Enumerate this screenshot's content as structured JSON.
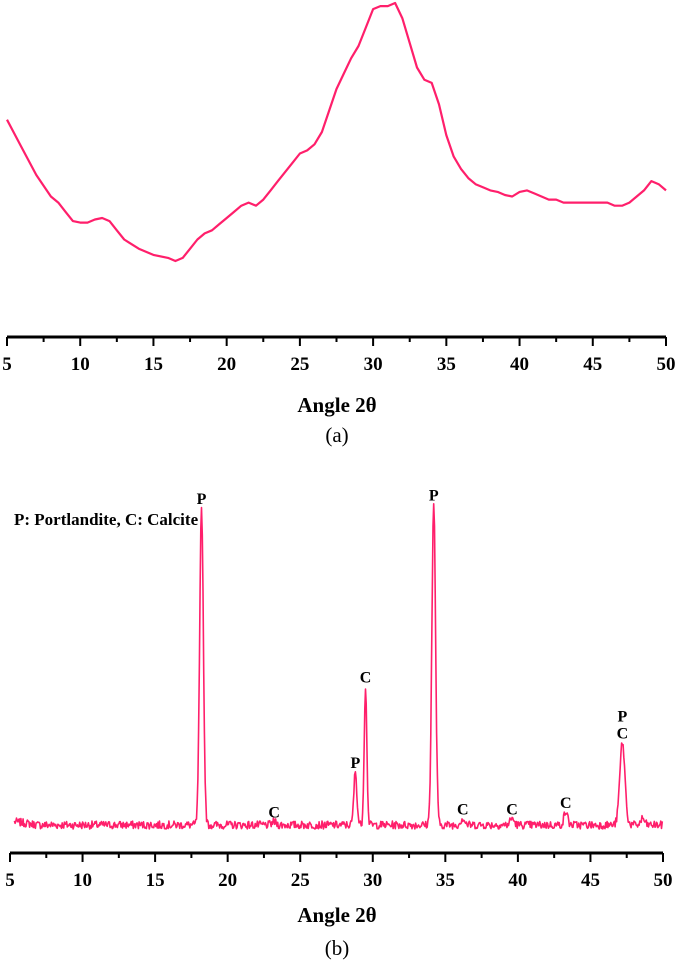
{
  "chart_data": [
    {
      "type": "line",
      "panel": "(a)",
      "caption": "(a)",
      "xlabel": "Angle 2θ",
      "ylabel": "",
      "xlim": [
        5,
        50
      ],
      "xticks": [
        5,
        10,
        15,
        20,
        25,
        30,
        35,
        40,
        45,
        50
      ],
      "ylim": [
        0,
        100
      ],
      "y_axis_shown": false,
      "grid": false,
      "color": "#ff1f6b",
      "series": [
        {
          "x": [
            5,
            6,
            7,
            8,
            8.5,
            9,
            9.5,
            10,
            10.5,
            11,
            11.5,
            12,
            12.5,
            13,
            14,
            15,
            16,
            16.5,
            17,
            17.5,
            18,
            18.5,
            19,
            19.5,
            20,
            20.5,
            21,
            21.5,
            22,
            22.5,
            23,
            23.5,
            24,
            24.5,
            25,
            25.5,
            26,
            26.5,
            27,
            27.5,
            28,
            28.5,
            29,
            29.5,
            30,
            30.5,
            31,
            31.5,
            32,
            32.5,
            33,
            33.5,
            34,
            34.5,
            35,
            35.5,
            36,
            36.5,
            37,
            37.5,
            38,
            38.5,
            39,
            39.5,
            40,
            40.5,
            41,
            41.5,
            42,
            42.5,
            43,
            44,
            45,
            46,
            46.5,
            47,
            47.5,
            48,
            48.5,
            49,
            49.5,
            50
          ],
          "y": [
            62,
            53,
            44,
            37,
            35,
            32,
            29,
            28.5,
            28.5,
            29.5,
            30,
            29,
            26,
            23,
            20,
            18,
            17,
            16,
            17,
            20,
            23,
            25,
            26,
            28,
            30,
            32,
            34,
            35,
            34,
            36,
            39,
            42,
            45,
            48,
            51,
            52,
            54,
            58,
            65,
            72,
            77,
            82,
            86,
            92,
            98,
            99,
            99,
            100,
            95,
            87,
            79,
            75,
            74,
            67,
            57,
            50,
            46,
            43,
            41,
            40,
            39,
            38.5,
            37.5,
            37,
            38.5,
            39,
            38,
            37,
            36,
            36,
            35,
            35,
            35,
            35,
            34,
            34,
            35,
            37,
            39,
            42,
            41,
            39
          ]
        }
      ]
    },
    {
      "type": "line",
      "panel": "(b)",
      "caption": "(b)",
      "xlabel": "Angle 2θ",
      "ylabel": "",
      "xlim": [
        5,
        50
      ],
      "xticks": [
        5,
        10,
        15,
        20,
        25,
        30,
        35,
        40,
        45,
        50
      ],
      "ylim": [
        0,
        100
      ],
      "y_axis_shown": false,
      "grid": false,
      "color": "#ff1f6b",
      "legend_text": "P: Portlandite, C: Calcite",
      "baseline": 4,
      "peaks": [
        {
          "x": 18.2,
          "y": 100,
          "width": 0.18,
          "label": "P"
        },
        {
          "x": 23.2,
          "y": 5,
          "width": 0.2,
          "label": "C"
        },
        {
          "x": 28.8,
          "y": 20,
          "width": 0.15,
          "label": "P"
        },
        {
          "x": 29.5,
          "y": 46,
          "width": 0.13,
          "label": "C"
        },
        {
          "x": 34.2,
          "y": 101,
          "width": 0.18,
          "label": "P"
        },
        {
          "x": 36.2,
          "y": 6,
          "width": 0.2,
          "label": "C"
        },
        {
          "x": 39.6,
          "y": 6,
          "width": 0.2,
          "label": "C"
        },
        {
          "x": 43.3,
          "y": 8,
          "width": 0.18,
          "label": "C"
        },
        {
          "x": 47.2,
          "y": 29,
          "width": 0.25,
          "label": "P\nC"
        },
        {
          "x": 48.6,
          "y": 6,
          "width": 0.18,
          "label": ""
        }
      ]
    }
  ]
}
